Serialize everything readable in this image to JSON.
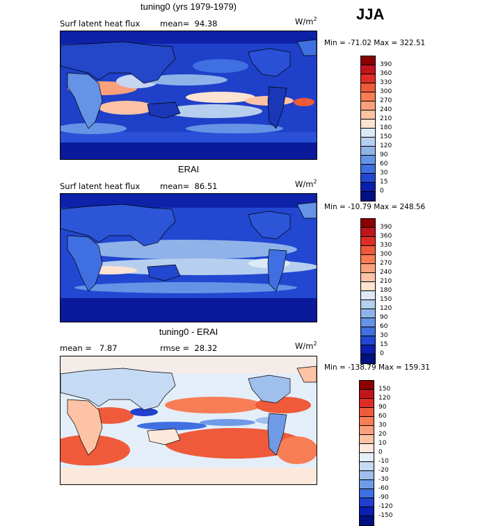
{
  "season": "JJA",
  "panels": [
    {
      "title": "tuning0 (yrs 1979-1979)",
      "field": "Surf latent heat flux",
      "stat_text": "mean=  94.38",
      "units": "W/m",
      "units_exp": "2",
      "minmax": "Min = -71.02 Max = 322.51",
      "palette": "absolute",
      "cbar_labels": [
        "390",
        "360",
        "330",
        "300",
        "270",
        "240",
        "210",
        "180",
        "150",
        "120",
        "90",
        "60",
        "30",
        "15",
        "0"
      ]
    },
    {
      "title": "ERAI",
      "field": "Surf latent heat flux",
      "stat_text": "mean=  86.51",
      "units": "W/m",
      "units_exp": "2",
      "minmax": "Min = -10.79 Max = 248.56",
      "palette": "absolute",
      "cbar_labels": [
        "390",
        "360",
        "330",
        "300",
        "270",
        "240",
        "210",
        "180",
        "150",
        "120",
        "90",
        "60",
        "30",
        "15",
        "0"
      ]
    },
    {
      "title": "tuning0 - ERAI",
      "field": "mean =   7.87",
      "stat_text": "rmse =  28.32",
      "units": "W/m",
      "units_exp": "2",
      "minmax": "Min = -138.79 Max = 159.31",
      "palette": "difference",
      "cbar_labels": [
        "150",
        "120",
        "90",
        "60",
        "30",
        "20",
        "10",
        "0",
        "-10",
        "-20",
        "-30",
        "-60",
        "-90",
        "-120",
        "-150"
      ]
    }
  ],
  "palettes": {
    "absolute": [
      "#8b0000",
      "#c0151b",
      "#de2d26",
      "#ef5a3a",
      "#f77d55",
      "#fba07c",
      "#fdc3a6",
      "#fde4d2",
      "#dce9f7",
      "#b6cfee",
      "#8fb3e8",
      "#6593e6",
      "#3f6fe0",
      "#2247d0",
      "#0a1fb0",
      "#001080"
    ],
    "difference": [
      "#8b0000",
      "#c0151b",
      "#de2d26",
      "#ef5a3a",
      "#f77d55",
      "#fba07c",
      "#fdc3a6",
      "#fde8dc",
      "#e3eef9",
      "#c5daf3",
      "#9fbfec",
      "#6f9ae6",
      "#3f6fe0",
      "#1f3fcc",
      "#0a1fb0",
      "#001080"
    ]
  }
}
